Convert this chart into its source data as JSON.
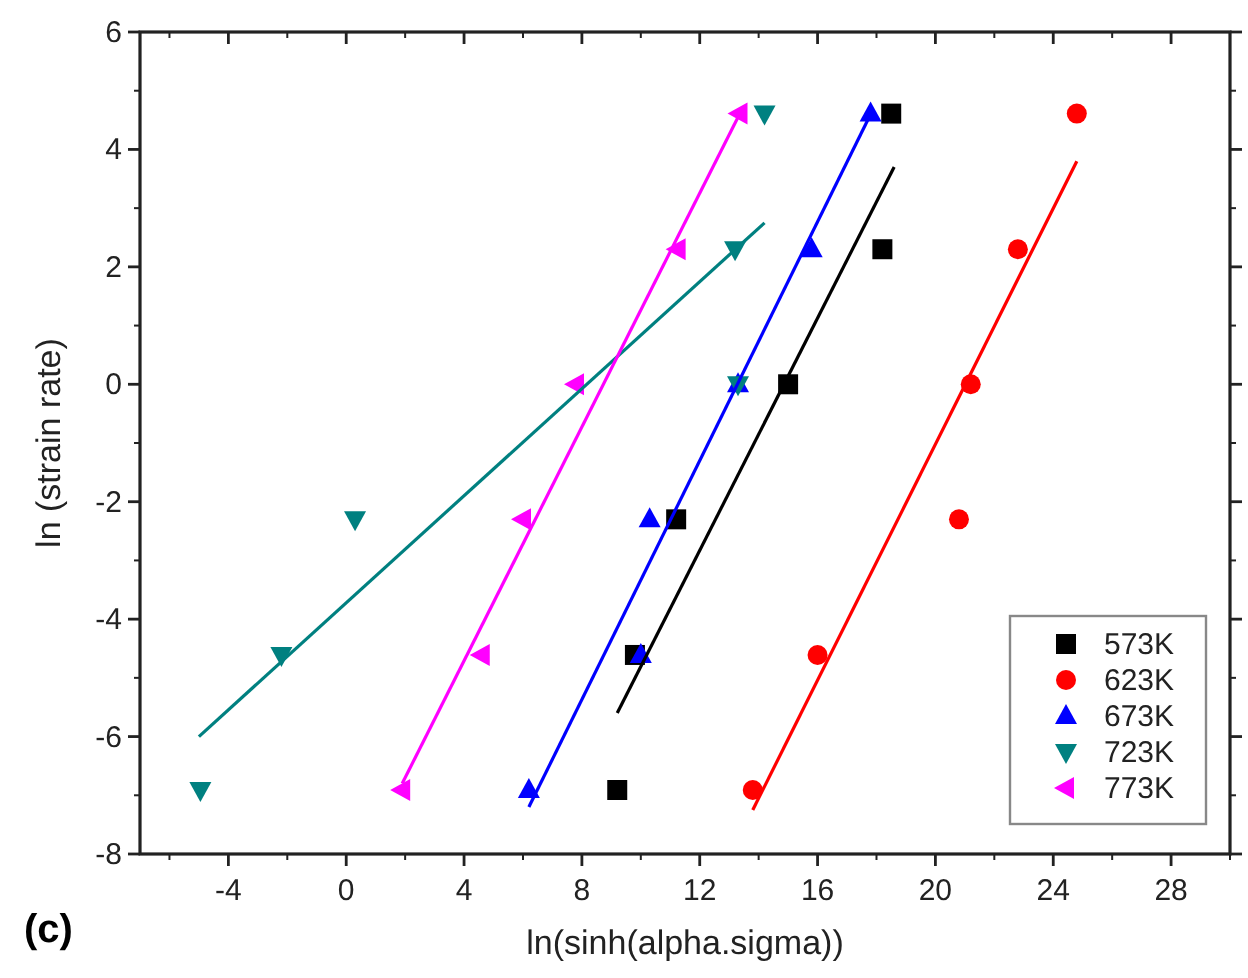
{
  "chart_data": {
    "type": "scatter",
    "xlabel": "ln(sinh(alpha.sigma))",
    "ylabel": "ln (strain rate)",
    "annotations": [
      "(c)"
    ],
    "xlim": [
      -7,
      30
    ],
    "xticks": [
      -4,
      0,
      4,
      8,
      12,
      16,
      20,
      24,
      28
    ],
    "ylim": [
      -8,
      6
    ],
    "yticks": [
      -8,
      -6,
      -4,
      -2,
      0,
      2,
      4,
      6
    ],
    "grid": false,
    "legend": "bottom right",
    "series": [
      {
        "name": "573K",
        "color": "#000000",
        "marker": "square",
        "x": [
          9.2,
          9.8,
          11.2,
          15.0,
          18.2,
          18.5
        ],
        "values": [
          -6.91,
          -4.61,
          -2.3,
          0,
          2.3,
          4.61
        ]
      },
      {
        "name": "623K",
        "color": "#ff0000",
        "marker": "circle",
        "x": [
          13.8,
          16.0,
          20.8,
          21.2,
          22.8,
          24.8
        ],
        "values": [
          -6.91,
          -4.61,
          -2.3,
          0,
          2.3,
          4.61
        ]
      },
      {
        "name": "673K",
        "color": "#0000ff",
        "marker": "triangle",
        "x": [
          6.2,
          10.0,
          10.3,
          13.3,
          15.8,
          17.8
        ],
        "values": [
          -6.91,
          -4.61,
          -2.3,
          0,
          2.3,
          4.61
        ]
      },
      {
        "name": "723K",
        "color": "#008080",
        "marker": "triangle-down",
        "x": [
          -4.95,
          -2.2,
          0.3,
          13.3,
          13.2,
          14.2
        ],
        "values": [
          -6.91,
          -4.61,
          -2.3,
          0,
          2.3,
          4.61
        ]
      },
      {
        "name": "773K",
        "color": "#ff00ff",
        "marker": "triangle-left",
        "x": [
          1.9,
          4.6,
          6.0,
          7.8,
          11.25,
          13.35
        ],
        "values": [
          -6.91,
          -4.61,
          -2.3,
          0,
          2.3,
          4.61
        ]
      },
      {
        "type": "line",
        "color": "#000000",
        "x": [
          9.2,
          18.6
        ],
        "values": [
          -5.6,
          3.7
        ]
      },
      {
        "type": "line",
        "color": "#ff0000",
        "x": [
          13.8,
          24.8
        ],
        "values": [
          -7.25,
          3.8
        ]
      },
      {
        "type": "line",
        "color": "#0000ff",
        "x": [
          6.2,
          17.8
        ],
        "values": [
          -7.2,
          4.6
        ]
      },
      {
        "type": "line",
        "color": "#008080",
        "x": [
          -5.0,
          14.2
        ],
        "values": [
          -6.0,
          2.75
        ]
      },
      {
        "type": "line",
        "color": "#ff00ff",
        "x": [
          1.9,
          13.35
        ],
        "values": [
          -6.8,
          4.6
        ]
      }
    ]
  }
}
